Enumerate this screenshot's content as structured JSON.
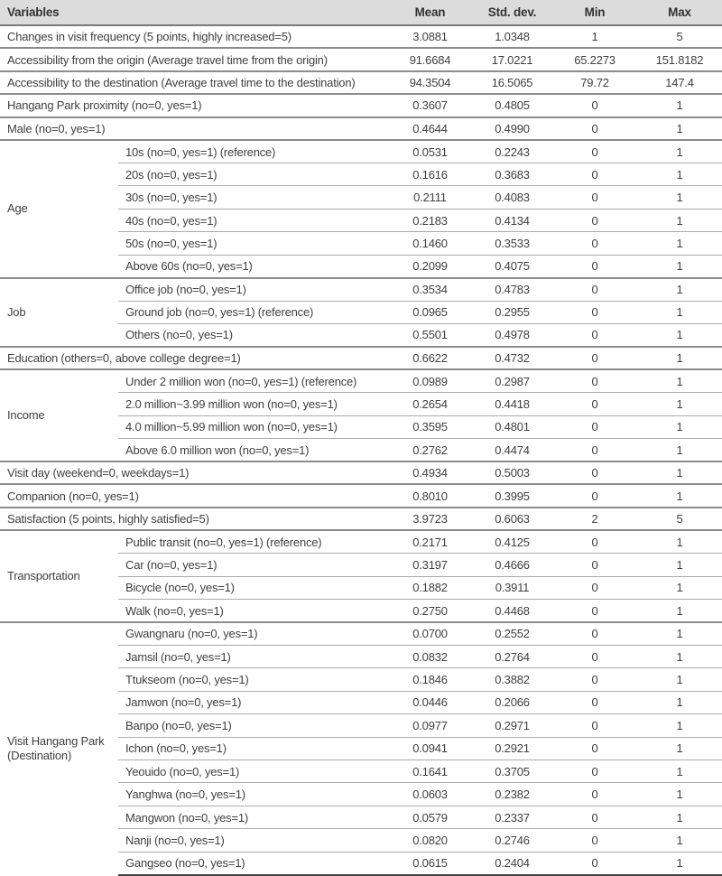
{
  "colors": {
    "header_background": "#dcdcdc",
    "text": "#404040",
    "border_major": "#8c8c8c",
    "border_sub": "#ababab",
    "border_bottom": "#454545"
  },
  "table": {
    "columns": [
      "Variables",
      "Mean",
      "Std. dev.",
      "Min",
      "Max"
    ],
    "rows": [
      {
        "label": "Changes in visit frequency (5 points, highly increased=5)",
        "mean": "3.0881",
        "std": "1.0348",
        "min": "1",
        "max": "5"
      },
      {
        "label": "Accessibility from the origin (Average travel time from the origin)",
        "mean": "91.6684",
        "std": "17.0221",
        "min": "65.2273",
        "max": "151.8182"
      },
      {
        "label": "Accessibility to the destination (Average travel time to the destination)",
        "mean": "94.3504",
        "std": "16.5065",
        "min": "79.72",
        "max": "147.4"
      },
      {
        "label": "Hangang Park proximity (no=0, yes=1)",
        "mean": "0.3607",
        "std": "0.4805",
        "min": "0",
        "max": "1"
      },
      {
        "label": "Male (no=0, yes=1)",
        "mean": "0.4644",
        "std": "0.4990",
        "min": "0",
        "max": "1"
      },
      {
        "group": "Age",
        "items": [
          {
            "label": "10s (no=0, yes=1) (reference)",
            "mean": "0.0531",
            "std": "0.2243",
            "min": "0",
            "max": "1"
          },
          {
            "label": "20s (no=0, yes=1)",
            "mean": "0.1616",
            "std": "0.3683",
            "min": "0",
            "max": "1"
          },
          {
            "label": "30s (no=0, yes=1)",
            "mean": "0.2111",
            "std": "0.4083",
            "min": "0",
            "max": "1"
          },
          {
            "label": "40s (no=0, yes=1)",
            "mean": "0.2183",
            "std": "0.4134",
            "min": "0",
            "max": "1"
          },
          {
            "label": "50s (no=0, yes=1)",
            "mean": "0.1460",
            "std": "0.3533",
            "min": "0",
            "max": "1"
          },
          {
            "label": "Above 60s (no=0, yes=1)",
            "mean": "0.2099",
            "std": "0.4075",
            "min": "0",
            "max": "1"
          }
        ]
      },
      {
        "group": "Job",
        "items": [
          {
            "label": "Office job (no=0, yes=1)",
            "mean": "0.3534",
            "std": "0.4783",
            "min": "0",
            "max": "1"
          },
          {
            "label": "Ground job (no=0, yes=1) (reference)",
            "mean": "0.0965",
            "std": "0.2955",
            "min": "0",
            "max": "1"
          },
          {
            "label": "Others (no=0, yes=1)",
            "mean": "0.5501",
            "std": "0.4978",
            "min": "0",
            "max": "1"
          }
        ]
      },
      {
        "label": "Education (others=0, above college degree=1)",
        "mean": "0.6622",
        "std": "0.4732",
        "min": "0",
        "max": "1"
      },
      {
        "group": "Income",
        "items": [
          {
            "label": "Under 2 million won (no=0, yes=1) (reference)",
            "mean": "0.0989",
            "std": "0.2987",
            "min": "0",
            "max": "1"
          },
          {
            "label": "2.0 million~3.99 million won (no=0, yes=1)",
            "mean": "0.2654",
            "std": "0.4418",
            "min": "0",
            "max": "1"
          },
          {
            "label": "4.0 million~5.99 million won (no=0, yes=1)",
            "mean": "0.3595",
            "std": "0.4801",
            "min": "0",
            "max": "1"
          },
          {
            "label": "Above 6.0 million won (no=0, yes=1)",
            "mean": "0.2762",
            "std": "0.4474",
            "min": "0",
            "max": "1"
          }
        ]
      },
      {
        "label": "Visit day (weekend=0, weekdays=1)",
        "mean": "0.4934",
        "std": "0.5003",
        "min": "0",
        "max": "1"
      },
      {
        "label": "Companion (no=0, yes=1)",
        "mean": "0.8010",
        "std": "0.3995",
        "min": "0",
        "max": "1"
      },
      {
        "label": "Satisfaction (5 points, highly satisfied=5)",
        "mean": "3.9723",
        "std": "0.6063",
        "min": "2",
        "max": "5"
      },
      {
        "group": "Transportation",
        "items": [
          {
            "label": "Public transit (no=0, yes=1) (reference)",
            "mean": "0.2171",
            "std": "0.4125",
            "min": "0",
            "max": "1"
          },
          {
            "label": "Car (no=0, yes=1)",
            "mean": "0.3197",
            "std": "0.4666",
            "min": "0",
            "max": "1"
          },
          {
            "label": "Bicycle (no=0, yes=1)",
            "mean": "0.1882",
            "std": "0.3911",
            "min": "0",
            "max": "1"
          },
          {
            "label": "Walk (no=0, yes=1)",
            "mean": "0.2750",
            "std": "0.4468",
            "min": "0",
            "max": "1"
          }
        ]
      },
      {
        "group": "Visit Hangang Park (Destination)",
        "items": [
          {
            "label": "Gwangnaru (no=0, yes=1)",
            "mean": "0.0700",
            "std": "0.2552",
            "min": "0",
            "max": "1"
          },
          {
            "label": "Jamsil (no=0, yes=1)",
            "mean": "0.0832",
            "std": "0.2764",
            "min": "0",
            "max": "1"
          },
          {
            "label": "Ttukseom (no=0, yes=1)",
            "mean": "0.1846",
            "std": "0.3882",
            "min": "0",
            "max": "1"
          },
          {
            "label": "Jamwon (no=0, yes=1)",
            "mean": "0.0446",
            "std": "0.2066",
            "min": "0",
            "max": "1"
          },
          {
            "label": "Banpo (no=0, yes=1)",
            "mean": "0.0977",
            "std": "0.2971",
            "min": "0",
            "max": "1"
          },
          {
            "label": "Ichon (no=0, yes=1)",
            "mean": "0.0941",
            "std": "0.2921",
            "min": "0",
            "max": "1"
          },
          {
            "label": "Yeouido (no=0, yes=1)",
            "mean": "0.1641",
            "std": "0.3705",
            "min": "0",
            "max": "1"
          },
          {
            "label": "Yanghwa (no=0, yes=1)",
            "mean": "0.0603",
            "std": "0.2382",
            "min": "0",
            "max": "1"
          },
          {
            "label": "Mangwon (no=0, yes=1)",
            "mean": "0.0579",
            "std": "0.2337",
            "min": "0",
            "max": "1"
          },
          {
            "label": "Nanji (no=0, yes=1)",
            "mean": "0.0820",
            "std": "0.2746",
            "min": "0",
            "max": "1"
          },
          {
            "label": "Gangseo (no=0, yes=1)",
            "mean": "0.0615",
            "std": "0.2404",
            "min": "0",
            "max": "1"
          }
        ]
      }
    ]
  }
}
